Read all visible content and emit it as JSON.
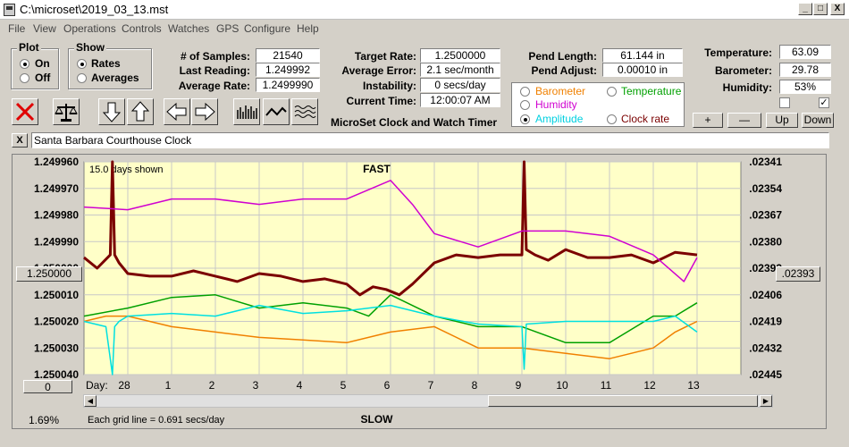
{
  "window": {
    "title": "C:\\microset\\2019_03_13.mst",
    "min": "_",
    "max": "□",
    "close": "X"
  },
  "menu": [
    "File",
    "View",
    "Operations",
    "Controls",
    "Watches",
    "GPS",
    "Configure",
    "Help"
  ],
  "plot": {
    "label": "Plot",
    "on": "On",
    "off": "Off",
    "selected": "On"
  },
  "show": {
    "label": "Show",
    "rates": "Rates",
    "averages": "Averages",
    "selected": "Rates"
  },
  "stats": {
    "samples_label": "# of Samples:",
    "samples": "21540",
    "last_label": "Last Reading:",
    "last": "1.249992",
    "avg_label": "Average Rate:",
    "avg": "1.2499990"
  },
  "target": {
    "rate_label": "Target Rate:",
    "rate": "1.2500000",
    "error_label": "Average Error:",
    "error": "2.1 sec/month",
    "instab_label": "Instability:",
    "instab": "0 secs/day",
    "time_label": "Current Time:",
    "time": "12:00:07 AM",
    "app_name": "MicroSet Clock and Watch Timer"
  },
  "pend": {
    "length_label": "Pend Length:",
    "length": "61.144 in",
    "adjust_label": "Pend Adjust:",
    "adjust": "0.00010 in"
  },
  "legend": {
    "barometer": "Barometer",
    "temperature": "Temperature",
    "humidity": "Humidity",
    "amplitude": "Amplitude",
    "clock_rate": "Clock rate",
    "selected": "Amplitude"
  },
  "env": {
    "temp_label": "Temperature:",
    "temp": "63.09",
    "baro_label": "Barometer:",
    "baro": "29.78",
    "hum_label": "Humidity:",
    "hum": "53%",
    "plus": "+",
    "minus": "—",
    "up": "Up",
    "down": "Down",
    "check2": "✓"
  },
  "clock_name": "Santa Barbara Courthouse Clock",
  "close_small": "X",
  "center_btn": "1.250000",
  "right_btn": ".02393",
  "zero_btn": "0",
  "percent": "1.69%",
  "colors": {
    "rate": "#7b0000",
    "humidity": "#d000d0",
    "temperature": "#00a000",
    "barometer": "#f08000",
    "amplitude": "#00e0e0",
    "bg": "#ffffc8",
    "grid": "#c8c8c8"
  },
  "chart_data": {
    "type": "line",
    "days_shown": "15.0 days shown",
    "top_label": "FAST",
    "bottom_label": "SLOW",
    "grid_note": "Each grid line = 0.691 secs/day",
    "x_axis_label": "Day:",
    "x_ticks": [
      "28",
      "1",
      "2",
      "3",
      "4",
      "5",
      "6",
      "7",
      "8",
      "9",
      "10",
      "11",
      "12",
      "13"
    ],
    "y_left_ticks": [
      "1.249960",
      "1.249970",
      "1.249980",
      "1.249990",
      "1.250000",
      "1.250010",
      "1.250020",
      "1.250030",
      "1.250040"
    ],
    "y_right_ticks": [
      ".02341",
      ".02354",
      ".02367",
      ".02380",
      ".02393",
      ".02406",
      ".02419",
      ".02432",
      ".02445"
    ],
    "ylim": [
      1.24996,
      1.25004
    ],
    "xlim": [
      0,
      15
    ],
    "series": [
      {
        "name": "Clock rate",
        "x": [
          0,
          0.3,
          0.6,
          0.65,
          0.7,
          0.8,
          1.0,
          1.5,
          2.0,
          2.5,
          3.0,
          3.5,
          4.0,
          4.5,
          5.0,
          5.5,
          6.0,
          6.3,
          6.6,
          6.9,
          7.2,
          7.5,
          8.0,
          8.5,
          9.0,
          9.5,
          10.0,
          10.05,
          10.1,
          10.3,
          10.6,
          11.0,
          11.5,
          12.0,
          12.5,
          13.0,
          13.5,
          14.0
        ],
        "y": [
          1.249996,
          1.25,
          1.249995,
          1.24996,
          1.249995,
          1.249998,
          1.250002,
          1.250003,
          1.250003,
          1.250001,
          1.250003,
          1.250005,
          1.250002,
          1.250003,
          1.250005,
          1.250004,
          1.250006,
          1.25001,
          1.250007,
          1.250008,
          1.25001,
          1.250006,
          1.249998,
          1.249995,
          1.249996,
          1.249995,
          1.249995,
          1.24996,
          1.249993,
          1.249995,
          1.249997,
          1.249993,
          1.249996,
          1.249996,
          1.249995,
          1.249998,
          1.249994,
          1.249995
        ]
      },
      {
        "name": "Humidity",
        "x": [
          0,
          1,
          2,
          3,
          4,
          5,
          6,
          7,
          7.5,
          8,
          9,
          10,
          11,
          12,
          13,
          13.7,
          14
        ],
        "y": [
          1.249977,
          1.249978,
          1.249974,
          1.249974,
          1.249976,
          1.249974,
          1.249974,
          1.249967,
          1.249976,
          1.249987,
          1.249992,
          1.249986,
          1.249986,
          1.249988,
          1.249995,
          1.250005,
          1.249996
        ]
      },
      {
        "name": "Temperature",
        "x": [
          0,
          1,
          2,
          3,
          4,
          5,
          6,
          6.5,
          7,
          8,
          9,
          10,
          11,
          12,
          13,
          13.5,
          14
        ],
        "y": [
          1.250018,
          1.250015,
          1.250011,
          1.25001,
          1.250015,
          1.250013,
          1.250015,
          1.250018,
          1.25001,
          1.250018,
          1.250022,
          1.250022,
          1.250028,
          1.250028,
          1.250018,
          1.250018,
          1.250013
        ]
      },
      {
        "name": "Barometer",
        "x": [
          0,
          0.5,
          1,
          2,
          3,
          4,
          5,
          6,
          7,
          8,
          9,
          10,
          11,
          12,
          13,
          13.5,
          14
        ],
        "y": [
          1.25002,
          1.250018,
          1.250018,
          1.250022,
          1.250024,
          1.250026,
          1.250027,
          1.250028,
          1.250024,
          1.250022,
          1.25003,
          1.25003,
          1.250032,
          1.250034,
          1.25003,
          1.250024,
          1.25002
        ]
      },
      {
        "name": "Amplitude",
        "x": [
          0,
          0.5,
          0.65,
          0.7,
          0.8,
          1,
          2,
          3,
          4,
          5,
          6,
          7,
          8,
          9,
          10,
          10.05,
          10.1,
          11,
          12,
          13,
          13.5,
          14
        ],
        "y": [
          1.25002,
          1.250022,
          1.25004,
          1.250022,
          1.25002,
          1.250018,
          1.250017,
          1.250018,
          1.250014,
          1.250017,
          1.250016,
          1.250014,
          1.250018,
          1.250021,
          1.250022,
          1.250038,
          1.250021,
          1.25002,
          1.25002,
          1.25002,
          1.250018,
          1.250024
        ]
      }
    ]
  }
}
